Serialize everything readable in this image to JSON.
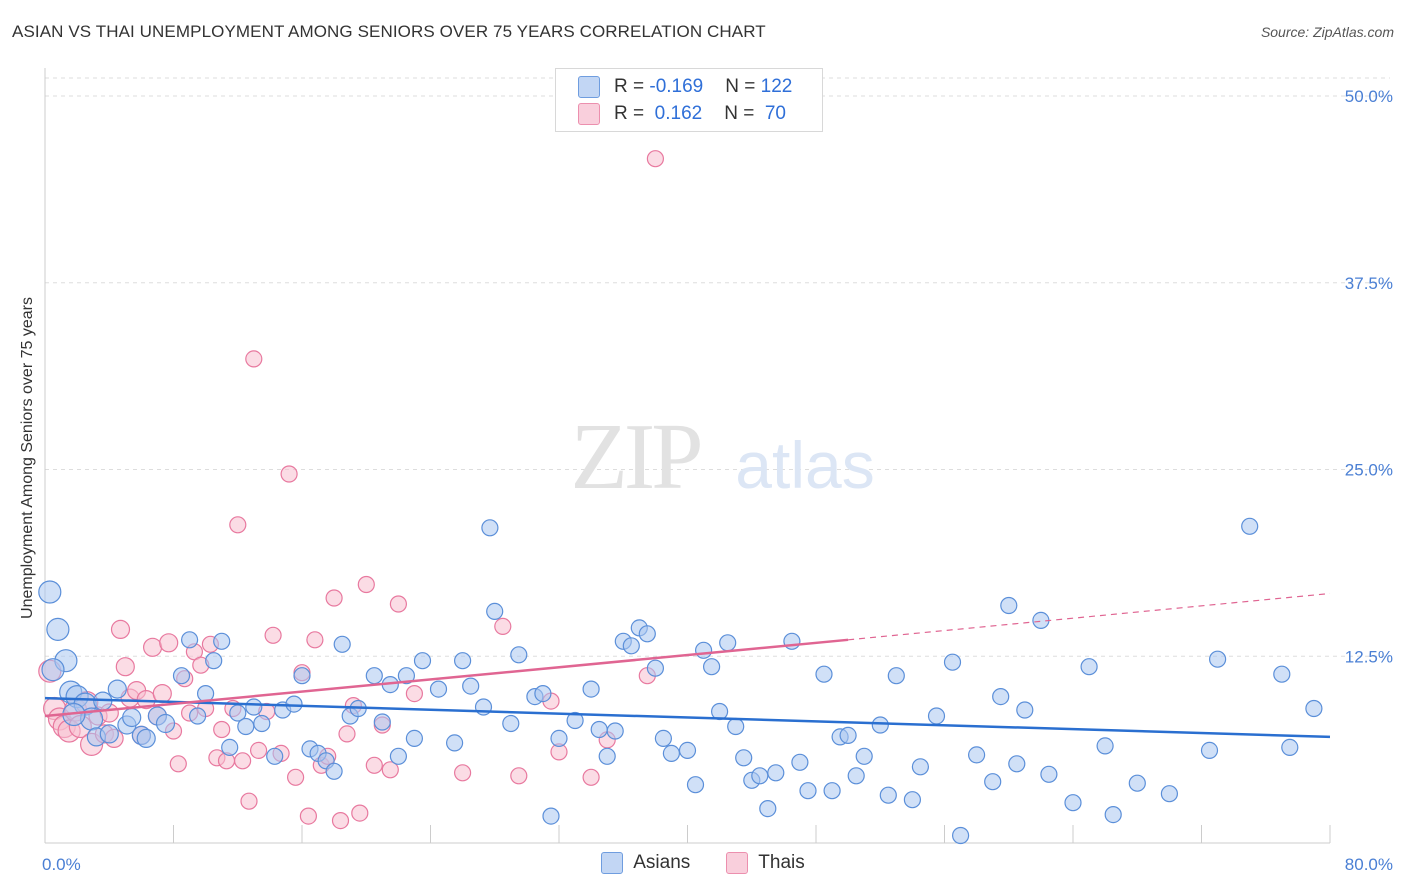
{
  "title": "ASIAN VS THAI UNEMPLOYMENT AMONG SENIORS OVER 75 YEARS CORRELATION CHART",
  "source": "Source: ZipAtlas.com",
  "watermark": {
    "zip": "ZIP",
    "atlas": "atlas"
  },
  "legend": {
    "asians": {
      "r_label": "R = ",
      "r_value": "-0.169",
      "n_label": "N = ",
      "n_value": "122"
    },
    "thais": {
      "r_label": "R = ",
      "r_value": " 0.162",
      "n_label": "N = ",
      "n_value": " 70"
    }
  },
  "colors": {
    "asians_fill": "#a9c6f0",
    "asians_stroke": "#5b8fd9",
    "asians_line": "#2a6fd0",
    "thais_fill": "#f7bfd0",
    "thais_stroke": "#e8799f",
    "thais_line": "#e06592",
    "tick_label": "#4a7fd4",
    "grid": "#dddddd"
  },
  "chart_data": {
    "type": "scatter",
    "title": "ASIAN VS THAI UNEMPLOYMENT AMONG SENIORS OVER 75 YEARS CORRELATION CHART",
    "xlabel": "",
    "ylabel": "Unemployment Among Seniors over 75 years",
    "xlim": [
      0,
      80
    ],
    "ylim": [
      0,
      50
    ],
    "x_tick_labels": [
      "0.0%",
      "80.0%"
    ],
    "y_ticks": [
      {
        "value": 50,
        "label": "50.0%"
      },
      {
        "value": 37.5,
        "label": "37.5%"
      },
      {
        "value": 25,
        "label": "25.0%"
      },
      {
        "value": 12.5,
        "label": "12.5%"
      }
    ],
    "grid": true,
    "legend_placement": "bottom",
    "series": [
      {
        "name": "Asians",
        "r": -0.169,
        "n": 122,
        "trend": {
          "x0": 0,
          "y0": 9.7,
          "x1": 80,
          "y1": 7.1
        },
        "points": [
          [
            0.3,
            16.8
          ],
          [
            0.8,
            14.3
          ],
          [
            1.3,
            12.2
          ],
          [
            1.6,
            10.1
          ],
          [
            2.0,
            9.8
          ],
          [
            2.5,
            9.3
          ],
          [
            2.9,
            8.3
          ],
          [
            3.2,
            7.1
          ],
          [
            4.0,
            7.3
          ],
          [
            4.5,
            10.3
          ],
          [
            5.1,
            7.9
          ],
          [
            5.4,
            8.4
          ],
          [
            6.0,
            7.2
          ],
          [
            6.3,
            7.0
          ],
          [
            7.0,
            8.5
          ],
          [
            7.5,
            8.0
          ],
          [
            8.5,
            11.2
          ],
          [
            9.0,
            13.6
          ],
          [
            9.5,
            8.5
          ],
          [
            10.0,
            10.0
          ],
          [
            10.5,
            12.2
          ],
          [
            11.0,
            13.5
          ],
          [
            11.5,
            6.4
          ],
          [
            12.0,
            8.7
          ],
          [
            12.5,
            7.8
          ],
          [
            13.0,
            9.1
          ],
          [
            13.5,
            8.0
          ],
          [
            14.3,
            5.8
          ],
          [
            14.8,
            8.9
          ],
          [
            15.5,
            9.3
          ],
          [
            16.0,
            11.2
          ],
          [
            16.5,
            6.3
          ],
          [
            17.0,
            6.0
          ],
          [
            17.5,
            5.5
          ],
          [
            18.0,
            4.8
          ],
          [
            18.5,
            13.3
          ],
          [
            19.0,
            8.5
          ],
          [
            19.5,
            9.0
          ],
          [
            20.5,
            11.2
          ],
          [
            21.0,
            8.1
          ],
          [
            21.5,
            10.6
          ],
          [
            22.0,
            5.8
          ],
          [
            22.5,
            11.2
          ],
          [
            23.0,
            7.0
          ],
          [
            23.5,
            12.2
          ],
          [
            24.5,
            10.3
          ],
          [
            25.5,
            6.7
          ],
          [
            26.0,
            12.2
          ],
          [
            26.5,
            10.5
          ],
          [
            27.3,
            9.1
          ],
          [
            27.7,
            21.1
          ],
          [
            28.0,
            15.5
          ],
          [
            29.0,
            8.0
          ],
          [
            29.5,
            12.6
          ],
          [
            30.5,
            9.8
          ],
          [
            31.0,
            10.0
          ],
          [
            31.5,
            1.8
          ],
          [
            32.0,
            7.0
          ],
          [
            33.0,
            8.2
          ],
          [
            34.0,
            10.3
          ],
          [
            34.5,
            7.6
          ],
          [
            35.0,
            5.8
          ],
          [
            35.5,
            7.5
          ],
          [
            36.0,
            13.5
          ],
          [
            36.5,
            13.2
          ],
          [
            37.0,
            14.4
          ],
          [
            37.5,
            14.0
          ],
          [
            38.0,
            11.7
          ],
          [
            38.5,
            7.0
          ],
          [
            39.0,
            6.0
          ],
          [
            40.0,
            6.2
          ],
          [
            40.5,
            3.9
          ],
          [
            41.0,
            12.9
          ],
          [
            41.5,
            11.8
          ],
          [
            42.0,
            8.8
          ],
          [
            42.5,
            13.4
          ],
          [
            43.0,
            7.8
          ],
          [
            43.5,
            5.7
          ],
          [
            44.0,
            4.2
          ],
          [
            44.5,
            4.5
          ],
          [
            45.0,
            2.3
          ],
          [
            45.5,
            4.7
          ],
          [
            46.5,
            13.5
          ],
          [
            47.0,
            5.4
          ],
          [
            47.5,
            3.5
          ],
          [
            48.5,
            11.3
          ],
          [
            49.0,
            3.5
          ],
          [
            49.5,
            7.1
          ],
          [
            50.0,
            7.2
          ],
          [
            50.5,
            4.5
          ],
          [
            51.0,
            5.8
          ],
          [
            52.0,
            7.9
          ],
          [
            52.5,
            3.2
          ],
          [
            53.0,
            11.2
          ],
          [
            54.0,
            2.9
          ],
          [
            54.5,
            5.1
          ],
          [
            55.5,
            8.5
          ],
          [
            56.5,
            12.1
          ],
          [
            57.0,
            0.5
          ],
          [
            58.0,
            5.9
          ],
          [
            59.0,
            4.1
          ],
          [
            59.5,
            9.8
          ],
          [
            60.0,
            15.9
          ],
          [
            60.5,
            5.3
          ],
          [
            61.0,
            8.9
          ],
          [
            62.0,
            14.9
          ],
          [
            62.5,
            4.6
          ],
          [
            64.0,
            2.7
          ],
          [
            65.0,
            11.8
          ],
          [
            66.0,
            6.5
          ],
          [
            66.5,
            1.9
          ],
          [
            68.0,
            4.0
          ],
          [
            70.0,
            3.3
          ],
          [
            72.5,
            6.2
          ],
          [
            73.0,
            12.3
          ],
          [
            75.0,
            21.2
          ],
          [
            77.0,
            11.3
          ],
          [
            79.0,
            9.0
          ],
          [
            77.5,
            6.4
          ],
          [
            0.5,
            11.6
          ],
          [
            1.8,
            8.6
          ],
          [
            3.6,
            9.5
          ]
        ]
      },
      {
        "name": "Thais",
        "r": 0.162,
        "n": 70,
        "trend_solid": {
          "x0": 0,
          "y0": 8.5,
          "x1": 50,
          "y1": 13.6
        },
        "trend_dashed": {
          "x0": 50,
          "y0": 13.6,
          "x1": 80,
          "y1": 16.7
        },
        "points": [
          [
            0.3,
            11.5
          ],
          [
            0.6,
            9.0
          ],
          [
            0.9,
            8.3
          ],
          [
            1.2,
            7.8
          ],
          [
            1.5,
            7.5
          ],
          [
            1.9,
            8.9
          ],
          [
            2.2,
            7.8
          ],
          [
            2.6,
            9.4
          ],
          [
            2.9,
            6.6
          ],
          [
            3.3,
            8.5
          ],
          [
            3.7,
            7.3
          ],
          [
            4.0,
            8.7
          ],
          [
            4.3,
            7.0
          ],
          [
            4.7,
            14.3
          ],
          [
            5.0,
            11.8
          ],
          [
            5.3,
            9.7
          ],
          [
            5.7,
            10.2
          ],
          [
            6.0,
            7.2
          ],
          [
            6.3,
            9.6
          ],
          [
            6.7,
            13.1
          ],
          [
            7.0,
            8.5
          ],
          [
            7.3,
            10.0
          ],
          [
            7.7,
            13.4
          ],
          [
            8.0,
            7.5
          ],
          [
            8.3,
            5.3
          ],
          [
            8.7,
            11.0
          ],
          [
            9.0,
            8.7
          ],
          [
            9.3,
            12.8
          ],
          [
            9.7,
            11.9
          ],
          [
            10.0,
            9.0
          ],
          [
            10.3,
            13.3
          ],
          [
            10.7,
            5.7
          ],
          [
            11.0,
            7.6
          ],
          [
            11.3,
            5.5
          ],
          [
            11.7,
            9.0
          ],
          [
            12.0,
            21.3
          ],
          [
            12.3,
            5.5
          ],
          [
            12.7,
            2.8
          ],
          [
            13.0,
            32.4
          ],
          [
            13.3,
            6.2
          ],
          [
            13.8,
            8.8
          ],
          [
            14.2,
            13.9
          ],
          [
            14.7,
            6.0
          ],
          [
            15.2,
            24.7
          ],
          [
            15.6,
            4.4
          ],
          [
            16.0,
            11.4
          ],
          [
            16.4,
            1.8
          ],
          [
            16.8,
            13.6
          ],
          [
            17.2,
            5.2
          ],
          [
            17.6,
            5.8
          ],
          [
            18.0,
            16.4
          ],
          [
            18.4,
            1.5
          ],
          [
            18.8,
            7.3
          ],
          [
            19.2,
            9.2
          ],
          [
            19.6,
            2.0
          ],
          [
            20.0,
            17.3
          ],
          [
            20.5,
            5.2
          ],
          [
            21.0,
            7.9
          ],
          [
            21.5,
            4.9
          ],
          [
            22.0,
            16.0
          ],
          [
            23.0,
            10.0
          ],
          [
            26.0,
            4.7
          ],
          [
            28.5,
            14.5
          ],
          [
            29.5,
            4.5
          ],
          [
            31.5,
            9.5
          ],
          [
            32.0,
            6.1
          ],
          [
            34.0,
            4.4
          ],
          [
            35.0,
            6.9
          ],
          [
            37.5,
            11.2
          ],
          [
            38.0,
            45.8
          ]
        ]
      }
    ]
  },
  "bottom_legend": [
    "Asians",
    "Thais"
  ]
}
